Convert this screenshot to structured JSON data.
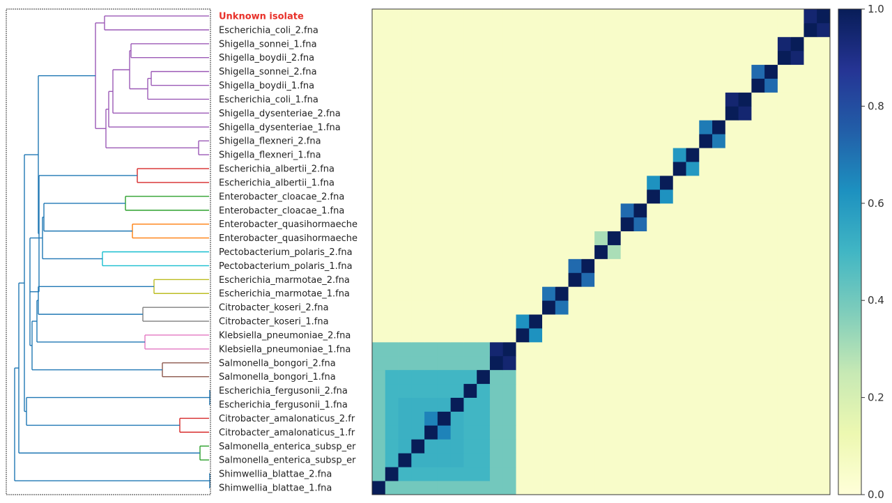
{
  "figure": {
    "highlight_label_color": "#e8312a",
    "frame_color": "#333333"
  },
  "chart_data": {
    "type": "heatmap",
    "title": "",
    "xlabel": "",
    "ylabel": "",
    "colormap": "YlGnBu",
    "colorbar": {
      "min": 0.0,
      "max": 1.0,
      "ticks": [
        0.0,
        0.2,
        0.4,
        0.6,
        0.8,
        1.0
      ],
      "tick_labels": [
        "0.0",
        "0.2",
        "0.4",
        "0.6",
        "0.8",
        "1.0"
      ]
    },
    "row_labels": [
      "Unknown isolate",
      "Escherichia_coli_2.fna",
      "Shigella_sonnei_1.fna",
      "Shigella_boydii_2.fna",
      "Shigella_sonnei_2.fna",
      "Shigella_boydii_1.fna",
      "Escherichia_coli_1.fna",
      "Shigella_dysenteriae_2.fna",
      "Shigella_dysenteriae_1.fna",
      "Shigella_flexneri_2.fna",
      "Shigella_flexneri_1.fna",
      "Escherichia_albertii_2.fna",
      "Escherichia_albertii_1.fna",
      "Enterobacter_cloacae_2.fna",
      "Enterobacter_cloacae_1.fna",
      "Enterobacter_quasihormaeche",
      "Enterobacter_quasihormaeche",
      "Pectobacterium_polaris_2.fna",
      "Pectobacterium_polaris_1.fna",
      "Escherichia_marmotae_2.fna",
      "Escherichia_marmotae_1.fna",
      "Citrobacter_koseri_2.fna",
      "Citrobacter_koseri_1.fna",
      "Klebsiella_pneumoniae_2.fna",
      "Klebsiella_pneumoniae_1.fna",
      "Salmonella_bongori_2.fna",
      "Salmonella_bongori_1.fna",
      "Escherichia_fergusonii_2.fna",
      "Escherichia_fergusonii_1.fna",
      "Citrobacter_amalonaticus_2.fr",
      "Citrobacter_amalonaticus_1.fr",
      "Salmonella_enterica_subsp_er",
      "Salmonella_enterica_subsp_er",
      "Shimwellia_blattae_2.fna",
      "Shimwellia_blattae_1.fna"
    ],
    "highlighted_row": 0,
    "diagonal_value": 1.0,
    "pair_values": [
      {
        "rows": [
          9,
          10
        ],
        "value": 0.95
      },
      {
        "rows": [
          11,
          12
        ],
        "value": 0.62
      },
      {
        "rows": [
          13,
          14
        ],
        "value": 0.7
      },
      {
        "rows": [
          15,
          16
        ],
        "value": 0.72
      },
      {
        "rows": [
          17,
          18
        ],
        "value": 0.3
      },
      {
        "rows": [
          19,
          20
        ],
        "value": 0.72
      },
      {
        "rows": [
          21,
          22
        ],
        "value": 0.62
      },
      {
        "rows": [
          23,
          24
        ],
        "value": 0.6
      },
      {
        "rows": [
          25,
          26
        ],
        "value": 0.68
      },
      {
        "rows": [
          27,
          28
        ],
        "value": 0.95
      },
      {
        "rows": [
          29,
          30
        ],
        "value": 0.72
      },
      {
        "rows": [
          31,
          32
        ],
        "value": 0.95
      },
      {
        "rows": [
          33,
          34
        ],
        "value": 0.95
      }
    ],
    "block_values": [
      {
        "rows": [
          0,
          10
        ],
        "value": 0.4
      },
      {
        "rows": [
          1,
          8
        ],
        "value": 0.5
      },
      {
        "rows": [
          2,
          6
        ],
        "value": 0.52
      },
      {
        "rows": [
          4,
          5
        ],
        "value": 0.66
      }
    ],
    "background_value": 0.05,
    "dendrogram": {
      "clades": [
        {
          "rows": [
            0,
            10
          ],
          "color": "#9b59b6"
        },
        {
          "rows": [
            11,
            12
          ],
          "color": "#d62728"
        },
        {
          "rows": [
            13,
            14
          ],
          "color": "#2ca02c"
        },
        {
          "rows": [
            15,
            16
          ],
          "color": "#ff7f0e"
        },
        {
          "rows": [
            17,
            18
          ],
          "color": "#17becf"
        },
        {
          "rows": [
            19,
            20
          ],
          "color": "#bcbd22"
        },
        {
          "rows": [
            21,
            22
          ],
          "color": "#7f7f7f"
        },
        {
          "rows": [
            23,
            24
          ],
          "color": "#e377c2"
        },
        {
          "rows": [
            25,
            26
          ],
          "color": "#8c564b"
        },
        {
          "rows": [
            29,
            30
          ],
          "color": "#d62728"
        },
        {
          "rows": [
            31,
            32
          ],
          "color": "#2ca02c"
        }
      ],
      "backbone_color": "#1f77b4"
    }
  }
}
